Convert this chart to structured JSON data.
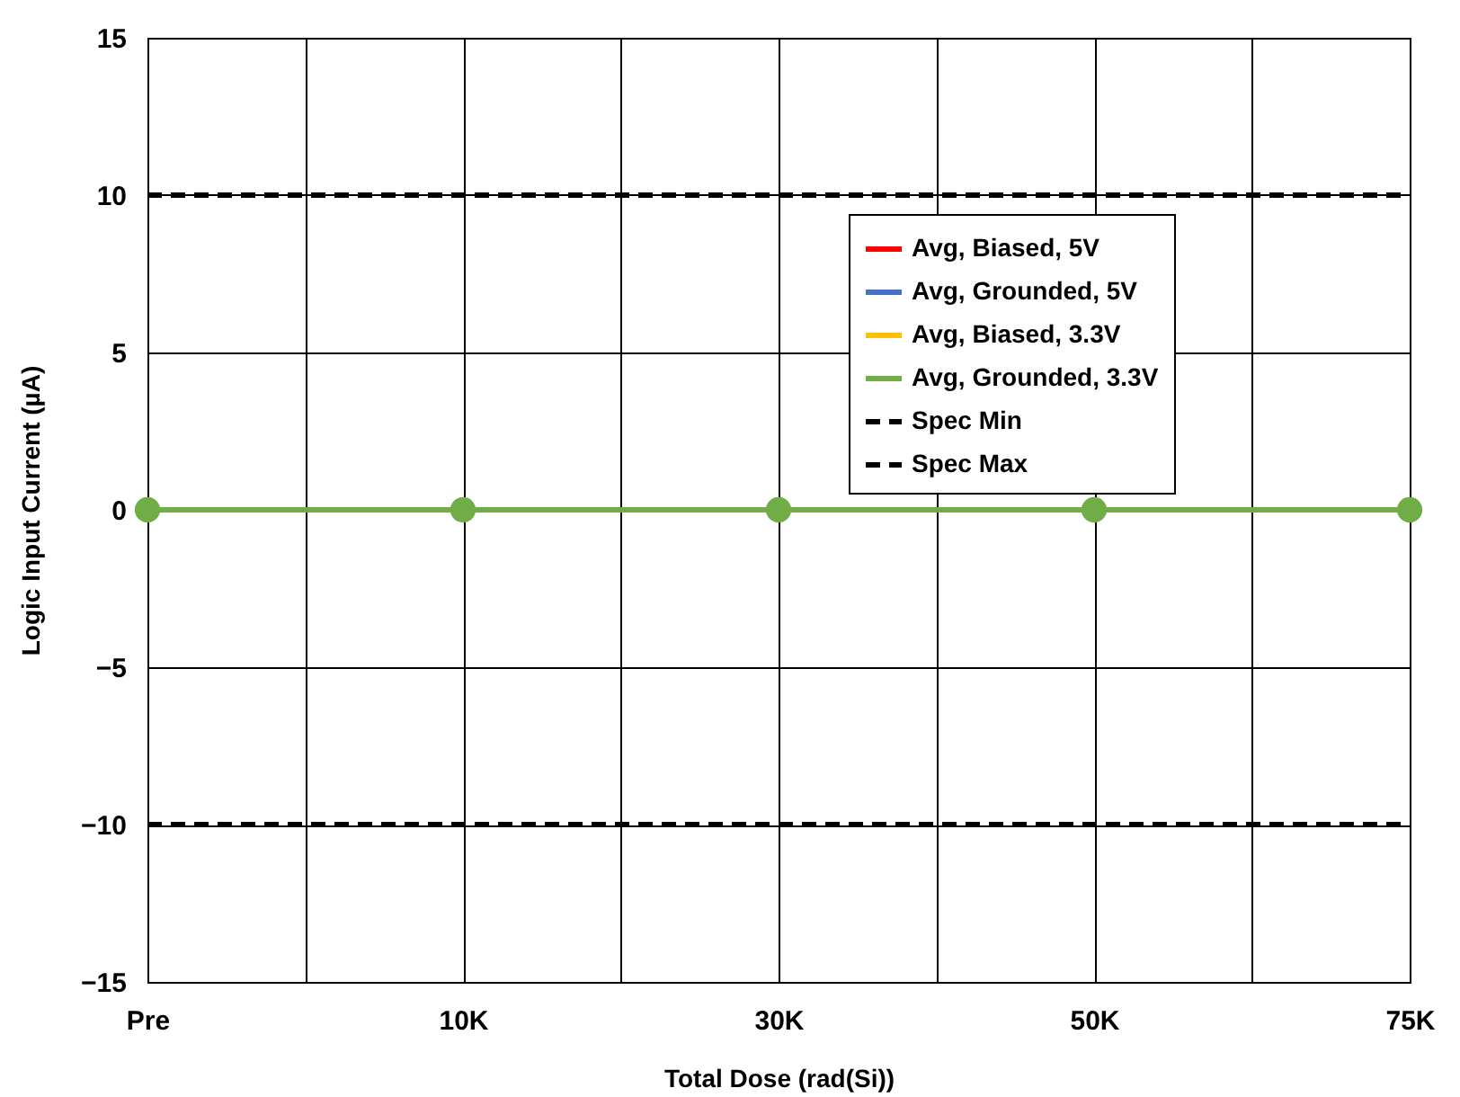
{
  "chart_data": {
    "type": "line",
    "xlabel": "Total Dose (rad(Si))",
    "ylabel": "Logic Input Current (µA)",
    "categories": [
      "Pre",
      "10K",
      "30K",
      "50K",
      "75K"
    ],
    "series": [
      {
        "name": "Avg, Biased, 5V",
        "color": "#ff0000",
        "values": [
          null,
          null,
          null,
          null,
          null
        ],
        "marker": "circle",
        "line_style": "solid"
      },
      {
        "name": "Avg, Grounded, 5V",
        "color": "#4472c4",
        "values": [
          null,
          null,
          null,
          null,
          null
        ],
        "marker": "circle",
        "line_style": "solid"
      },
      {
        "name": "Avg, Biased, 3.3V",
        "color": "#ffc000",
        "values": [
          null,
          null,
          null,
          null,
          null
        ],
        "marker": "circle",
        "line_style": "solid"
      },
      {
        "name": "Avg, Grounded, 3.3V",
        "color": "#70ad47",
        "values": [
          0,
          0,
          0,
          0,
          0
        ],
        "marker": "circle",
        "line_style": "solid"
      },
      {
        "name": "Spec Min",
        "color": "#000000",
        "values": [
          -10,
          -10,
          -10,
          -10,
          -10
        ],
        "marker": "none",
        "line_style": "dashed"
      },
      {
        "name": "Spec Max",
        "color": "#000000",
        "values": [
          10,
          10,
          10,
          10,
          10
        ],
        "marker": "none",
        "line_style": "dashed"
      }
    ],
    "ylim": [
      -15,
      15
    ],
    "yticks": [
      -15,
      -10,
      -5,
      0,
      5,
      10,
      15
    ],
    "grid": true,
    "legend": "top right"
  }
}
